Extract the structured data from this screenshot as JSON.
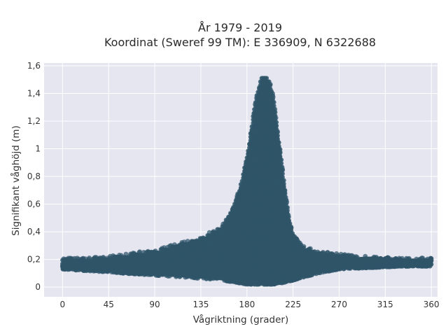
{
  "chart_data": {
    "type": "scatter",
    "title": "År 1979 - 2019",
    "subtitle": "Koordinat (Sweref 99 TM): E 336909, N 6322688",
    "xlabel": "Vågriktning (grader)",
    "ylabel": "Signifikant våghöjd (m)",
    "xlim": [
      -18,
      366
    ],
    "ylim": [
      -0.07,
      1.62
    ],
    "x_ticks": [
      0,
      45,
      90,
      135,
      180,
      225,
      270,
      315,
      360
    ],
    "x_tick_labels": [
      "0",
      "45",
      "90",
      "135",
      "180",
      "225",
      "270",
      "315",
      "360"
    ],
    "y_ticks": [
      0,
      0.2,
      0.4,
      0.6,
      0.8,
      1,
      1.2,
      1.4,
      1.6
    ],
    "y_tick_labels": [
      "0",
      "0,2",
      "0,4",
      "0,6",
      "0,8",
      "1",
      "1,2",
      "1,4",
      "1,6"
    ],
    "grid": true,
    "point_color": "#2f5569",
    "background_color": "#e5e6f0",
    "envelope_profile": {
      "direction_deg": [
        0,
        20,
        40,
        60,
        80,
        100,
        120,
        140,
        155,
        165,
        172,
        180,
        186,
        190,
        194,
        198,
        202,
        206,
        210,
        215,
        220,
        225,
        235,
        250,
        270,
        300,
        330,
        360
      ],
      "min_hs_m": [
        0.13,
        0.12,
        0.11,
        0.1,
        0.09,
        0.08,
        0.07,
        0.06,
        0.05,
        0.04,
        0.03,
        0.02,
        0.02,
        0.02,
        0.02,
        0.02,
        0.02,
        0.02,
        0.03,
        0.03,
        0.04,
        0.05,
        0.07,
        0.1,
        0.13,
        0.14,
        0.15,
        0.15
      ],
      "max_hs_m": [
        0.21,
        0.21,
        0.22,
        0.24,
        0.26,
        0.29,
        0.33,
        0.38,
        0.45,
        0.55,
        0.7,
        0.95,
        1.25,
        1.42,
        1.52,
        1.53,
        1.5,
        1.38,
        1.15,
        0.85,
        0.55,
        0.38,
        0.3,
        0.26,
        0.24,
        0.22,
        0.21,
        0.21
      ]
    }
  }
}
